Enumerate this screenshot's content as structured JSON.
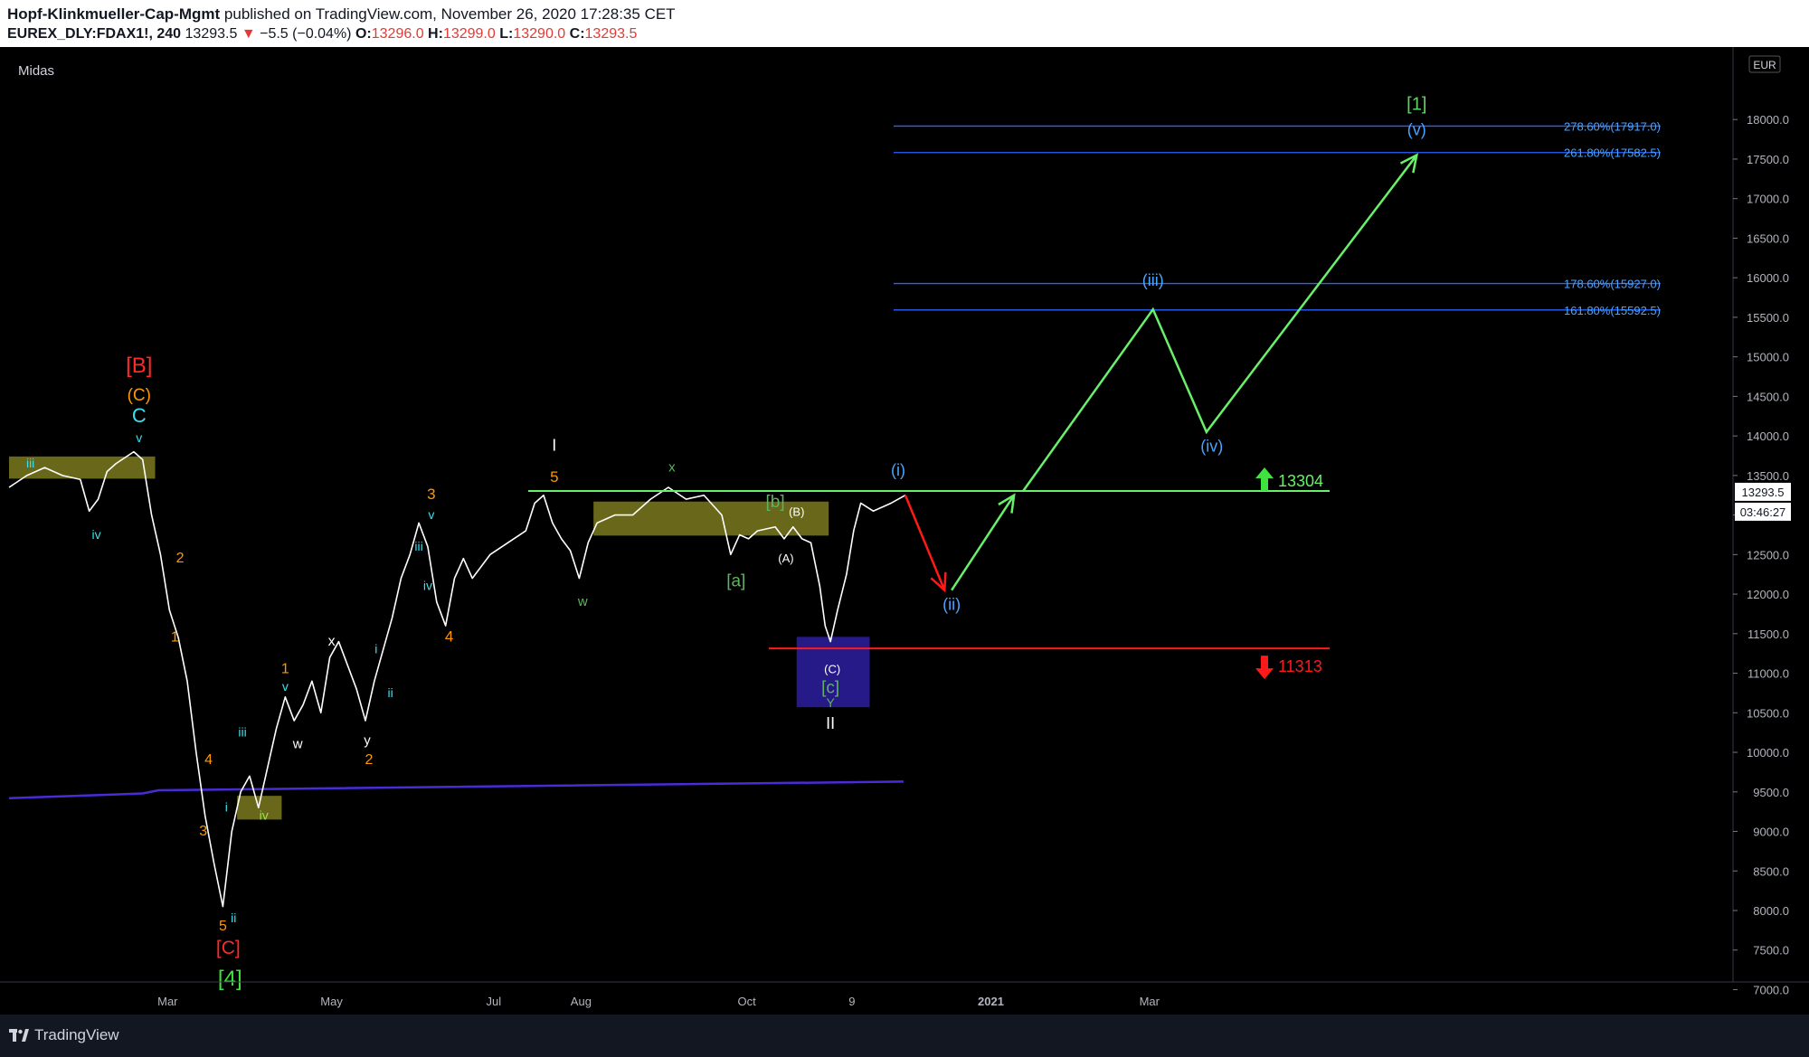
{
  "header": {
    "publisher": "Hopf-Klinkmueller-Cap-Mgmt",
    "published_text": "published on TradingView.com, November 26, 2020 17:28:35 CET",
    "symbol": "EUREX_DLY:FDAX1!, 240",
    "last": "13293.5",
    "change": "−5.5 (−0.04%)",
    "open_label": "O:",
    "open": "13296.0",
    "high_label": "H:",
    "high": "13299.0",
    "low_label": "L:",
    "low": "13290.0",
    "close_label": "C:",
    "close": "13293.5"
  },
  "indicator_name": "Midas",
  "currency": "EUR",
  "price_badge": "13293.5",
  "countdown": "03:46:27",
  "footer": {
    "brand": "TradingView"
  },
  "colors": {
    "background": "#000000",
    "price": "#ffffff",
    "projection": "#69f06a",
    "fib": "#2962ff",
    "fib_text": "#4aa3ff",
    "support": "#ff1a1a",
    "midas": "#4b2bd6",
    "zone": "#8c8a22",
    "down_color": "#e53935"
  },
  "chart_data": {
    "type": "line",
    "ylim": [
      6300,
      18300
    ],
    "ytick_values": [
      7000,
      7500,
      8000,
      8500,
      9000,
      9500,
      10000,
      10500,
      11000,
      11500,
      12000,
      12500,
      13000,
      13500,
      14000,
      14500,
      15000,
      15500,
      16000,
      16500,
      17000,
      17500,
      18000
    ],
    "ytick_labels": [
      "7000.0",
      "7500.0",
      "8000.0",
      "8500.0",
      "9000.0",
      "9500.0",
      "10000.0",
      "10500.0",
      "11000.0",
      "11500.0",
      "12000.0",
      "12500.0",
      "13000.0",
      "13500.0",
      "14000.0",
      "14500.0",
      "15000.0",
      "15500.0",
      "16000.0",
      "16500.0",
      "17000.0",
      "17500.0",
      "18000.0"
    ],
    "x_domain": [
      0,
      100
    ],
    "x_ticks": [
      {
        "label": "Mar",
        "x": 8.9
      },
      {
        "label": "May",
        "x": 18.1
      },
      {
        "label": "Jul",
        "x": 27.2
      },
      {
        "label": "Aug",
        "x": 32.1
      },
      {
        "label": "Oct",
        "x": 41.4
      },
      {
        "label": "9",
        "x": 47.3
      },
      {
        "label": "2021",
        "x": 55.1
      },
      {
        "label": "Mar",
        "x": 64.0
      }
    ],
    "price_series": [
      [
        0,
        13350
      ],
      [
        1,
        13500
      ],
      [
        2,
        13600
      ],
      [
        3,
        13500
      ],
      [
        4,
        13450
      ],
      [
        4.5,
        13050
      ],
      [
        5,
        13200
      ],
      [
        5.5,
        13550
      ],
      [
        6,
        13650
      ],
      [
        7,
        13800
      ],
      [
        7.5,
        13700
      ],
      [
        8,
        13000
      ],
      [
        8.5,
        12500
      ],
      [
        9,
        11800
      ],
      [
        9.5,
        11450
      ],
      [
        10,
        10900
      ],
      [
        10.5,
        10000
      ],
      [
        11,
        9200
      ],
      [
        11.5,
        8600
      ],
      [
        12,
        8050
      ],
      [
        12.5,
        9000
      ],
      [
        13,
        9500
      ],
      [
        13.5,
        9700
      ],
      [
        14,
        9300
      ],
      [
        14.5,
        9800
      ],
      [
        15,
        10300
      ],
      [
        15.5,
        10700
      ],
      [
        16,
        10400
      ],
      [
        16.5,
        10600
      ],
      [
        17,
        10900
      ],
      [
        17.5,
        10500
      ],
      [
        18,
        11200
      ],
      [
        18.5,
        11400
      ],
      [
        19,
        11100
      ],
      [
        19.5,
        10800
      ],
      [
        20,
        10400
      ],
      [
        20.5,
        10900
      ],
      [
        21,
        11300
      ],
      [
        21.5,
        11700
      ],
      [
        22,
        12200
      ],
      [
        22.5,
        12500
      ],
      [
        23,
        12900
      ],
      [
        23.5,
        12600
      ],
      [
        24,
        11900
      ],
      [
        24.5,
        11600
      ],
      [
        25,
        12200
      ],
      [
        25.5,
        12450
      ],
      [
        26,
        12200
      ],
      [
        27,
        12500
      ],
      [
        28,
        12650
      ],
      [
        29,
        12800
      ],
      [
        29.5,
        13150
      ],
      [
        30,
        13250
      ],
      [
        30.5,
        12900
      ],
      [
        31,
        12700
      ],
      [
        31.5,
        12550
      ],
      [
        32,
        12200
      ],
      [
        32.5,
        12650
      ],
      [
        33,
        12900
      ],
      [
        34,
        13000
      ],
      [
        35,
        13000
      ],
      [
        36,
        13200
      ],
      [
        37,
        13350
      ],
      [
        38,
        13200
      ],
      [
        39,
        13250
      ],
      [
        40,
        13000
      ],
      [
        40.5,
        12500
      ],
      [
        41,
        12750
      ],
      [
        41.5,
        12700
      ],
      [
        42,
        12800
      ],
      [
        43,
        12850
      ],
      [
        43.5,
        12700
      ],
      [
        44,
        12850
      ],
      [
        44.5,
        12700
      ],
      [
        45,
        12650
      ],
      [
        45.5,
        12100
      ],
      [
        45.8,
        11600
      ],
      [
        46.1,
        11400
      ],
      [
        46.5,
        11800
      ],
      [
        47,
        12250
      ],
      [
        47.4,
        12800
      ],
      [
        47.8,
        13150
      ],
      [
        48.5,
        13050
      ],
      [
        49.5,
        13150
      ],
      [
        50.3,
        13250
      ]
    ],
    "projection": [
      [
        56.9,
        13300
      ],
      [
        64.2,
        15600
      ],
      [
        67.2,
        14050
      ],
      [
        79.0,
        17550
      ]
    ],
    "corrective_projection": [
      [
        50.3,
        13250
      ],
      [
        52.5,
        12050
      ]
    ],
    "corrective_rebound": [
      [
        52.9,
        12050
      ],
      [
        56.4,
        13250
      ]
    ],
    "midas_line": [
      [
        0,
        9420
      ],
      [
        7.5,
        9480
      ],
      [
        8.4,
        9520
      ],
      [
        50.2,
        9630
      ]
    ],
    "levels": [
      {
        "label": "278.60%(17917.0)",
        "value": 17917
      },
      {
        "label": "261.80%(17582.5)",
        "value": 17582.5
      },
      {
        "label": "178.60%(15927.0)",
        "value": 15927
      },
      {
        "label": "161.80%(15592.5)",
        "value": 15592.5
      }
    ],
    "resistance": {
      "value": 13304,
      "label": "13304"
    },
    "support": {
      "value": 11313,
      "label": "11313"
    },
    "zones": [
      {
        "x0": 0,
        "x1": 8.2,
        "y0": 13460,
        "y1": 13740
      },
      {
        "x0": 32.8,
        "x1": 46.0,
        "y0": 12740,
        "y1": 13170
      },
      {
        "x0": 12.8,
        "x1": 15.3,
        "y0": 9150,
        "y1": 9450
      },
      {
        "x0": 44.2,
        "x1": 48.3,
        "y0": 10570,
        "y1": 11460
      }
    ],
    "wave_labels": [
      {
        "text": "[B]",
        "x": 7.3,
        "y": 14800,
        "color": "#ff2a2a",
        "size": 24
      },
      {
        "text": "(C)",
        "x": 7.3,
        "y": 14450,
        "color": "#ff9800",
        "size": 19
      },
      {
        "text": "C",
        "x": 7.3,
        "y": 14170,
        "color": "#38e1ee",
        "size": 22
      },
      {
        "text": "v",
        "x": 7.3,
        "y": 13920,
        "color": "#38e1ee",
        "size": 14
      },
      {
        "text": "iii",
        "x": 1.2,
        "y": 13600,
        "color": "#38e1ee",
        "size": 14
      },
      {
        "text": "iv",
        "x": 4.9,
        "y": 12700,
        "color": "#38e1ee",
        "size": 14
      },
      {
        "text": "2",
        "x": 9.6,
        "y": 12400,
        "color": "#ff9800",
        "size": 16
      },
      {
        "text": "1",
        "x": 9.3,
        "y": 11400,
        "color": "#ff9800",
        "size": 16
      },
      {
        "text": "4",
        "x": 11.2,
        "y": 9850,
        "color": "#ff9800",
        "size": 16
      },
      {
        "text": "3",
        "x": 10.9,
        "y": 8950,
        "color": "#ff9800",
        "size": 16
      },
      {
        "text": "i",
        "x": 12.2,
        "y": 9250,
        "color": "#38e1ee",
        "size": 14
      },
      {
        "text": "iii",
        "x": 13.1,
        "y": 10200,
        "color": "#38e1ee",
        "size": 14
      },
      {
        "text": "iv",
        "x": 14.3,
        "y": 9150,
        "color": "#9be34a",
        "size": 14
      },
      {
        "text": "ii",
        "x": 12.6,
        "y": 7850,
        "color": "#38e1ee",
        "size": 14
      },
      {
        "text": "5",
        "x": 12.0,
        "y": 7750,
        "color": "#ff9800",
        "size": 16
      },
      {
        "text": "[C]",
        "x": 12.3,
        "y": 7450,
        "color": "#ff2a2a",
        "size": 21
      },
      {
        "text": "[4]",
        "x": 12.4,
        "y": 7050,
        "color": "#3fe23f",
        "size": 24
      },
      {
        "text": "1",
        "x": 15.5,
        "y": 11000,
        "color": "#ff9800",
        "size": 16
      },
      {
        "text": "v",
        "x": 15.5,
        "y": 10780,
        "color": "#38e1ee",
        "size": 14
      },
      {
        "text": "w",
        "x": 16.2,
        "y": 10050,
        "color": "#ffffff",
        "size": 15
      },
      {
        "text": "x",
        "x": 18.1,
        "y": 11350,
        "color": "#ffffff",
        "size": 16
      },
      {
        "text": "y",
        "x": 20.1,
        "y": 10100,
        "color": "#ffffff",
        "size": 15
      },
      {
        "text": "2",
        "x": 20.2,
        "y": 9850,
        "color": "#ff9800",
        "size": 16
      },
      {
        "text": "i",
        "x": 20.6,
        "y": 11250,
        "color": "#38e1ee",
        "size": 14
      },
      {
        "text": "ii",
        "x": 21.4,
        "y": 10700,
        "color": "#38e1ee",
        "size": 14
      },
      {
        "text": "iii",
        "x": 23.0,
        "y": 12550,
        "color": "#38e1ee",
        "size": 14
      },
      {
        "text": "iv",
        "x": 23.5,
        "y": 12050,
        "color": "#38e1ee",
        "size": 14
      },
      {
        "text": "3",
        "x": 23.7,
        "y": 13200,
        "color": "#ff9800",
        "size": 17
      },
      {
        "text": "v",
        "x": 23.7,
        "y": 12950,
        "color": "#38e1ee",
        "size": 14
      },
      {
        "text": "4",
        "x": 24.7,
        "y": 11400,
        "color": "#ff9800",
        "size": 17
      },
      {
        "text": "I",
        "x": 30.6,
        "y": 13810,
        "color": "#ffffff",
        "size": 18
      },
      {
        "text": "5",
        "x": 30.6,
        "y": 13420,
        "color": "#ff9800",
        "size": 17
      },
      {
        "text": "w",
        "x": 32.2,
        "y": 11850,
        "color": "#5fb35f",
        "size": 15
      },
      {
        "text": "x",
        "x": 37.2,
        "y": 13550,
        "color": "#5fb35f",
        "size": 15
      },
      {
        "text": "[a]",
        "x": 40.8,
        "y": 12100,
        "color": "#5fb35f",
        "size": 19
      },
      {
        "text": "(A)",
        "x": 43.6,
        "y": 12400,
        "color": "#ffffff",
        "size": 13
      },
      {
        "text": "[b]",
        "x": 43.0,
        "y": 13100,
        "color": "#5fb35f",
        "size": 19
      },
      {
        "text": "(B)",
        "x": 44.2,
        "y": 12990,
        "color": "#ffffff",
        "size": 13
      },
      {
        "text": "(C)",
        "x": 46.2,
        "y": 11000,
        "color": "#ffffff",
        "size": 13
      },
      {
        "text": "[c]",
        "x": 46.1,
        "y": 10750,
        "color": "#5fb35f",
        "size": 19
      },
      {
        "text": "Y",
        "x": 46.1,
        "y": 10570,
        "color": "#5fb35f",
        "size": 14
      },
      {
        "text": "II",
        "x": 46.1,
        "y": 10300,
        "color": "#ffffff",
        "size": 18
      },
      {
        "text": "(i)",
        "x": 49.9,
        "y": 13500,
        "color": "#4aa3ff",
        "size": 18
      },
      {
        "text": "(ii)",
        "x": 52.9,
        "y": 11800,
        "color": "#4aa3ff",
        "size": 18
      },
      {
        "text": "(iii)",
        "x": 64.2,
        "y": 15900,
        "color": "#4aa3ff",
        "size": 18
      },
      {
        "text": "(iv)",
        "x": 67.5,
        "y": 13800,
        "color": "#4aa3ff",
        "size": 18
      },
      {
        "text": "(v)",
        "x": 79.0,
        "y": 17800,
        "color": "#4aa3ff",
        "size": 18
      },
      {
        "text": "[1]",
        "x": 79.0,
        "y": 18120,
        "color": "#5fd35f",
        "size": 20
      }
    ]
  }
}
